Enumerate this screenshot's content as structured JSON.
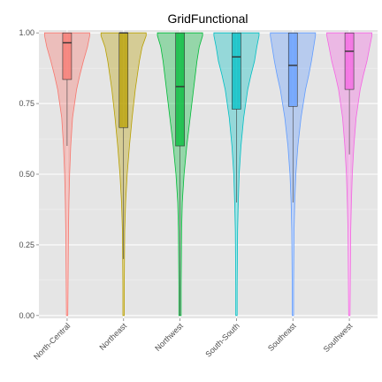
{
  "chart_data": {
    "type": "violin",
    "title": "GridFunctional",
    "xlabel": "",
    "ylabel": "",
    "ylim": [
      -0.01,
      1.01
    ],
    "yticks": [
      0.0,
      0.25,
      0.5,
      0.75,
      1.0
    ],
    "ytick_labels": [
      "0.00",
      "0.25",
      "0.50",
      "0.75",
      "1.00"
    ],
    "grid": true,
    "legend": "none",
    "categories": [
      "North-Central",
      "Northeast",
      "Northwest",
      "South-South",
      "Southeast",
      "Southwest"
    ],
    "series": [
      {
        "category": "North-Central",
        "color": "#F8766D",
        "min": 0.0,
        "q1": 0.835,
        "median": 0.965,
        "q3": 1.0,
        "max": 1.0,
        "whisker_low": 0.6,
        "whisker_high": 1.0,
        "density": [
          [
            0.0,
            0.03
          ],
          [
            0.1,
            0.04
          ],
          [
            0.2,
            0.05
          ],
          [
            0.3,
            0.06
          ],
          [
            0.4,
            0.08
          ],
          [
            0.5,
            0.11
          ],
          [
            0.6,
            0.16
          ],
          [
            0.7,
            0.24
          ],
          [
            0.8,
            0.42
          ],
          [
            0.85,
            0.56
          ],
          [
            0.9,
            0.72
          ],
          [
            0.95,
            0.9
          ],
          [
            0.99,
            1.0
          ],
          [
            1.0,
            1.0
          ]
        ]
      },
      {
        "category": "Northeast",
        "color": "#B79F00",
        "min": 0.0,
        "q1": 0.665,
        "median": 1.0,
        "q3": 1.0,
        "max": 1.0,
        "whisker_low": 0.2,
        "whisker_high": 1.0,
        "density": [
          [
            0.0,
            0.03
          ],
          [
            0.1,
            0.03
          ],
          [
            0.2,
            0.04
          ],
          [
            0.3,
            0.05
          ],
          [
            0.4,
            0.09
          ],
          [
            0.5,
            0.16
          ],
          [
            0.6,
            0.26
          ],
          [
            0.7,
            0.38
          ],
          [
            0.8,
            0.52
          ],
          [
            0.9,
            0.7
          ],
          [
            0.95,
            0.82
          ],
          [
            0.99,
            1.0
          ],
          [
            1.0,
            1.0
          ]
        ]
      },
      {
        "category": "Northwest",
        "color": "#00BA38",
        "min": 0.0,
        "q1": 0.6,
        "median": 0.81,
        "q3": 1.0,
        "max": 1.0,
        "whisker_low": 0.0,
        "whisker_high": 1.0,
        "density": [
          [
            0.0,
            0.05
          ],
          [
            0.1,
            0.05
          ],
          [
            0.2,
            0.06
          ],
          [
            0.3,
            0.07
          ],
          [
            0.4,
            0.1
          ],
          [
            0.5,
            0.18
          ],
          [
            0.6,
            0.3
          ],
          [
            0.7,
            0.45
          ],
          [
            0.8,
            0.6
          ],
          [
            0.9,
            0.75
          ],
          [
            0.95,
            0.85
          ],
          [
            0.99,
            1.0
          ],
          [
            1.0,
            1.0
          ]
        ]
      },
      {
        "category": "South-South",
        "color": "#00BFC4",
        "min": 0.0,
        "q1": 0.73,
        "median": 0.915,
        "q3": 1.0,
        "max": 1.0,
        "whisker_low": 0.4,
        "whisker_high": 1.0,
        "density": [
          [
            0.0,
            0.03
          ],
          [
            0.1,
            0.03
          ],
          [
            0.2,
            0.04
          ],
          [
            0.3,
            0.05
          ],
          [
            0.4,
            0.08
          ],
          [
            0.5,
            0.12
          ],
          [
            0.6,
            0.2
          ],
          [
            0.7,
            0.32
          ],
          [
            0.8,
            0.5
          ],
          [
            0.85,
            0.64
          ],
          [
            0.9,
            0.8
          ],
          [
            0.95,
            0.9
          ],
          [
            0.99,
            1.0
          ],
          [
            1.0,
            1.0
          ]
        ]
      },
      {
        "category": "Southeast",
        "color": "#619CFF",
        "min": 0.0,
        "q1": 0.74,
        "median": 0.885,
        "q3": 1.0,
        "max": 1.0,
        "whisker_low": 0.4,
        "whisker_high": 1.0,
        "density": [
          [
            0.0,
            0.03
          ],
          [
            0.1,
            0.03
          ],
          [
            0.2,
            0.04
          ],
          [
            0.3,
            0.05
          ],
          [
            0.4,
            0.08
          ],
          [
            0.5,
            0.13
          ],
          [
            0.6,
            0.22
          ],
          [
            0.7,
            0.36
          ],
          [
            0.8,
            0.56
          ],
          [
            0.85,
            0.7
          ],
          [
            0.9,
            0.82
          ],
          [
            0.95,
            0.92
          ],
          [
            0.99,
            1.0
          ],
          [
            1.0,
            1.0
          ]
        ]
      },
      {
        "category": "Southwest",
        "color": "#F564E3",
        "min": 0.0,
        "q1": 0.8,
        "median": 0.935,
        "q3": 1.0,
        "max": 1.0,
        "whisker_low": 0.57,
        "whisker_high": 1.0,
        "density": [
          [
            0.0,
            0.03
          ],
          [
            0.1,
            0.04
          ],
          [
            0.2,
            0.05
          ],
          [
            0.3,
            0.06
          ],
          [
            0.4,
            0.09
          ],
          [
            0.5,
            0.13
          ],
          [
            0.6,
            0.2
          ],
          [
            0.7,
            0.3
          ],
          [
            0.8,
            0.48
          ],
          [
            0.85,
            0.62
          ],
          [
            0.9,
            0.78
          ],
          [
            0.95,
            0.9
          ],
          [
            0.99,
            1.0
          ],
          [
            1.0,
            1.0
          ]
        ]
      }
    ]
  }
}
